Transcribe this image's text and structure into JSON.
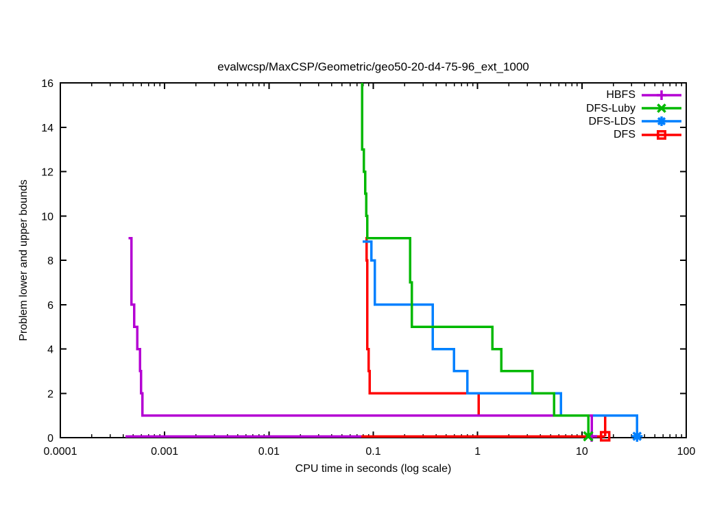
{
  "chart_data": {
    "type": "line",
    "title": "evalwcsp/MaxCSP/Geometric/geo50-20-d4-75-96_ext_1000",
    "xlabel": "CPU time in seconds (log scale)",
    "ylabel": "Problem lower and upper bounds",
    "x_scale": "log",
    "y_scale": "linear",
    "xlim": [
      0.0001,
      100
    ],
    "ylim": [
      0,
      16
    ],
    "grid": false,
    "legend_position": "top-right-inside",
    "axis_color": "#000000",
    "background_color": "#ffffff",
    "x_ticks": {
      "values": [
        0.0001,
        0.001,
        0.01,
        0.1,
        1,
        10,
        100
      ],
      "labels": [
        "0.0001",
        "0.001",
        "0.01",
        "0.1",
        "1",
        "10",
        "100"
      ]
    },
    "y_ticks": {
      "values": [
        0,
        2,
        4,
        6,
        8,
        10,
        12,
        14,
        16
      ],
      "labels": [
        "0",
        "2",
        "4",
        "6",
        "8",
        "10",
        "12",
        "14",
        "16"
      ]
    },
    "series": [
      {
        "name": "HBFS",
        "color": "#b400d3",
        "marker": "plus",
        "upper_bound_steps": [
          [
            0.00045,
            9
          ],
          [
            0.00048,
            9
          ],
          [
            0.00048,
            6
          ],
          [
            0.00051,
            6
          ],
          [
            0.00051,
            5
          ],
          [
            0.000545,
            5
          ],
          [
            0.000545,
            4
          ],
          [
            0.00058,
            4
          ],
          [
            0.00058,
            3
          ],
          [
            0.000595,
            3
          ],
          [
            0.000595,
            2
          ],
          [
            0.00061,
            2
          ],
          [
            0.00061,
            1
          ],
          [
            12.4,
            1
          ],
          [
            12.4,
            0
          ]
        ],
        "lower_bound_steps": [
          [
            0.00042,
            0
          ],
          [
            0.0765,
            0
          ]
        ],
        "end_point": [
          12.4,
          0
        ]
      },
      {
        "name": "DFS-Luby",
        "color": "#00b800",
        "marker": "cross",
        "upper_bound_steps": [
          [
            0.078,
            16
          ],
          [
            0.078,
            13
          ],
          [
            0.0812,
            13
          ],
          [
            0.0812,
            12
          ],
          [
            0.0834,
            12
          ],
          [
            0.0834,
            11
          ],
          [
            0.0855,
            11
          ],
          [
            0.0855,
            10
          ],
          [
            0.0875,
            10
          ],
          [
            0.0875,
            9
          ],
          [
            0.226,
            9
          ],
          [
            0.226,
            7
          ],
          [
            0.234,
            7
          ],
          [
            0.234,
            5
          ],
          [
            1.38,
            5
          ],
          [
            1.38,
            4
          ],
          [
            1.68,
            4
          ],
          [
            1.68,
            3
          ],
          [
            3.36,
            3
          ],
          [
            3.36,
            2
          ],
          [
            5.42,
            2
          ],
          [
            5.42,
            1
          ],
          [
            11.5,
            1
          ],
          [
            11.5,
            0
          ]
        ],
        "end_point": [
          11.5,
          0
        ]
      },
      {
        "name": "DFS-LDS",
        "color": "#0080ff",
        "marker": "asterisk",
        "upper_bound_steps": [
          [
            0.079,
            8.85
          ],
          [
            0.096,
            8.85
          ],
          [
            0.096,
            8
          ],
          [
            0.1035,
            8
          ],
          [
            0.1035,
            6
          ],
          [
            0.37,
            6
          ],
          [
            0.37,
            4
          ],
          [
            0.595,
            4
          ],
          [
            0.595,
            3
          ],
          [
            0.8,
            3
          ],
          [
            0.8,
            2
          ],
          [
            6.3,
            2
          ],
          [
            6.3,
            1
          ],
          [
            33.8,
            1
          ],
          [
            33.8,
            0
          ]
        ],
        "end_point": [
          33.8,
          0
        ]
      },
      {
        "name": "DFS",
        "color": "#ff0000",
        "marker": "square-open",
        "upper_bound_steps": [
          [
            0.084,
            9
          ],
          [
            0.0865,
            9
          ],
          [
            0.0865,
            8
          ],
          [
            0.0877,
            8
          ],
          [
            0.0877,
            4
          ],
          [
            0.0905,
            4
          ],
          [
            0.0905,
            3
          ],
          [
            0.0925,
            3
          ],
          [
            0.0925,
            2
          ],
          [
            1.02,
            2
          ],
          [
            1.02,
            1
          ],
          [
            16.7,
            1
          ],
          [
            16.7,
            0
          ]
        ],
        "lower_bound_steps": [
          [
            0.0765,
            0
          ],
          [
            16.7,
            0
          ]
        ],
        "end_point": [
          16.7,
          0
        ]
      }
    ],
    "draw_order": [
      "DFS",
      "DFS-LDS",
      "HBFS",
      "DFS-Luby"
    ]
  }
}
